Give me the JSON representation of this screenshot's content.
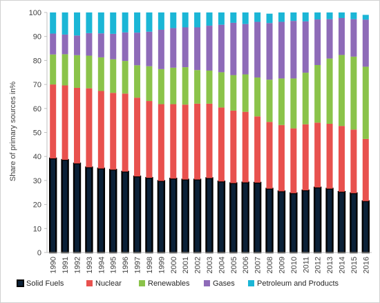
{
  "chart_data": {
    "type": "bar",
    "stacked": true,
    "title": "",
    "xlabel": "",
    "ylabel": "Share of primary sources in%",
    "ylim": [
      0,
      100
    ],
    "yticks": [
      0,
      10,
      20,
      30,
      40,
      50,
      60,
      70,
      80,
      90,
      100
    ],
    "grid": false,
    "legend_position": "bottom",
    "categories": [
      "1990",
      "1991",
      "1992",
      "1993",
      "1994",
      "1995",
      "1996",
      "1997",
      "1998",
      "1999",
      "2000",
      "2001",
      "2002",
      "2003",
      "2004",
      "2005",
      "2006",
      "2007",
      "2008",
      "2009",
      "2010",
      "2011",
      "2012",
      "2013",
      "2014",
      "2015",
      "2016"
    ],
    "series": [
      {
        "name": "Solid Fuels",
        "color": "#0b2138",
        "values": [
          39.2,
          38.6,
          37.1,
          35.5,
          35.0,
          34.5,
          33.7,
          31.7,
          31.1,
          29.8,
          30.8,
          30.4,
          30.4,
          31.0,
          29.6,
          28.9,
          29.2,
          29.1,
          26.6,
          25.5,
          24.7,
          25.9,
          27.1,
          26.6,
          25.3,
          24.7,
          21.4
        ]
      },
      {
        "name": "Nuclear",
        "color": "#e8514e",
        "values": [
          30.8,
          31.0,
          31.5,
          32.9,
          32.3,
          32.0,
          32.5,
          32.8,
          32.0,
          32.0,
          31.0,
          31.2,
          31.6,
          31.0,
          30.8,
          30.2,
          29.4,
          27.6,
          27.8,
          27.6,
          27.0,
          27.5,
          27.0,
          27.0,
          27.4,
          26.5,
          25.9
        ]
      },
      {
        "name": "Renewables",
        "color": "#8bc34a",
        "values": [
          12.5,
          13.0,
          13.6,
          13.6,
          14.0,
          14.0,
          13.6,
          13.5,
          14.5,
          14.6,
          15.2,
          15.6,
          14.0,
          13.8,
          14.7,
          14.8,
          15.6,
          16.2,
          17.6,
          19.4,
          20.8,
          21.5,
          24.0,
          27.2,
          29.6,
          30.4,
          30.1
        ]
      },
      {
        "name": "Gases",
        "color": "#8e6bb8",
        "values": [
          8.7,
          8.2,
          8.2,
          9.4,
          10.0,
          10.6,
          11.9,
          13.6,
          14.4,
          16.4,
          16.5,
          16.6,
          17.8,
          18.7,
          19.8,
          21.8,
          21.0,
          23.2,
          23.6,
          23.6,
          24.0,
          21.4,
          19.0,
          16.4,
          15.4,
          15.6,
          19.6
        ]
      },
      {
        "name": "Petroleum and Products",
        "color": "#1bb6d6",
        "values": [
          8.8,
          9.2,
          9.6,
          8.6,
          8.7,
          8.9,
          8.3,
          8.4,
          8.0,
          7.2,
          6.5,
          6.2,
          6.2,
          5.5,
          5.1,
          4.3,
          4.8,
          3.9,
          3.9,
          3.9,
          3.5,
          3.7,
          2.9,
          2.8,
          2.3,
          2.8,
          2.0
        ]
      }
    ]
  }
}
